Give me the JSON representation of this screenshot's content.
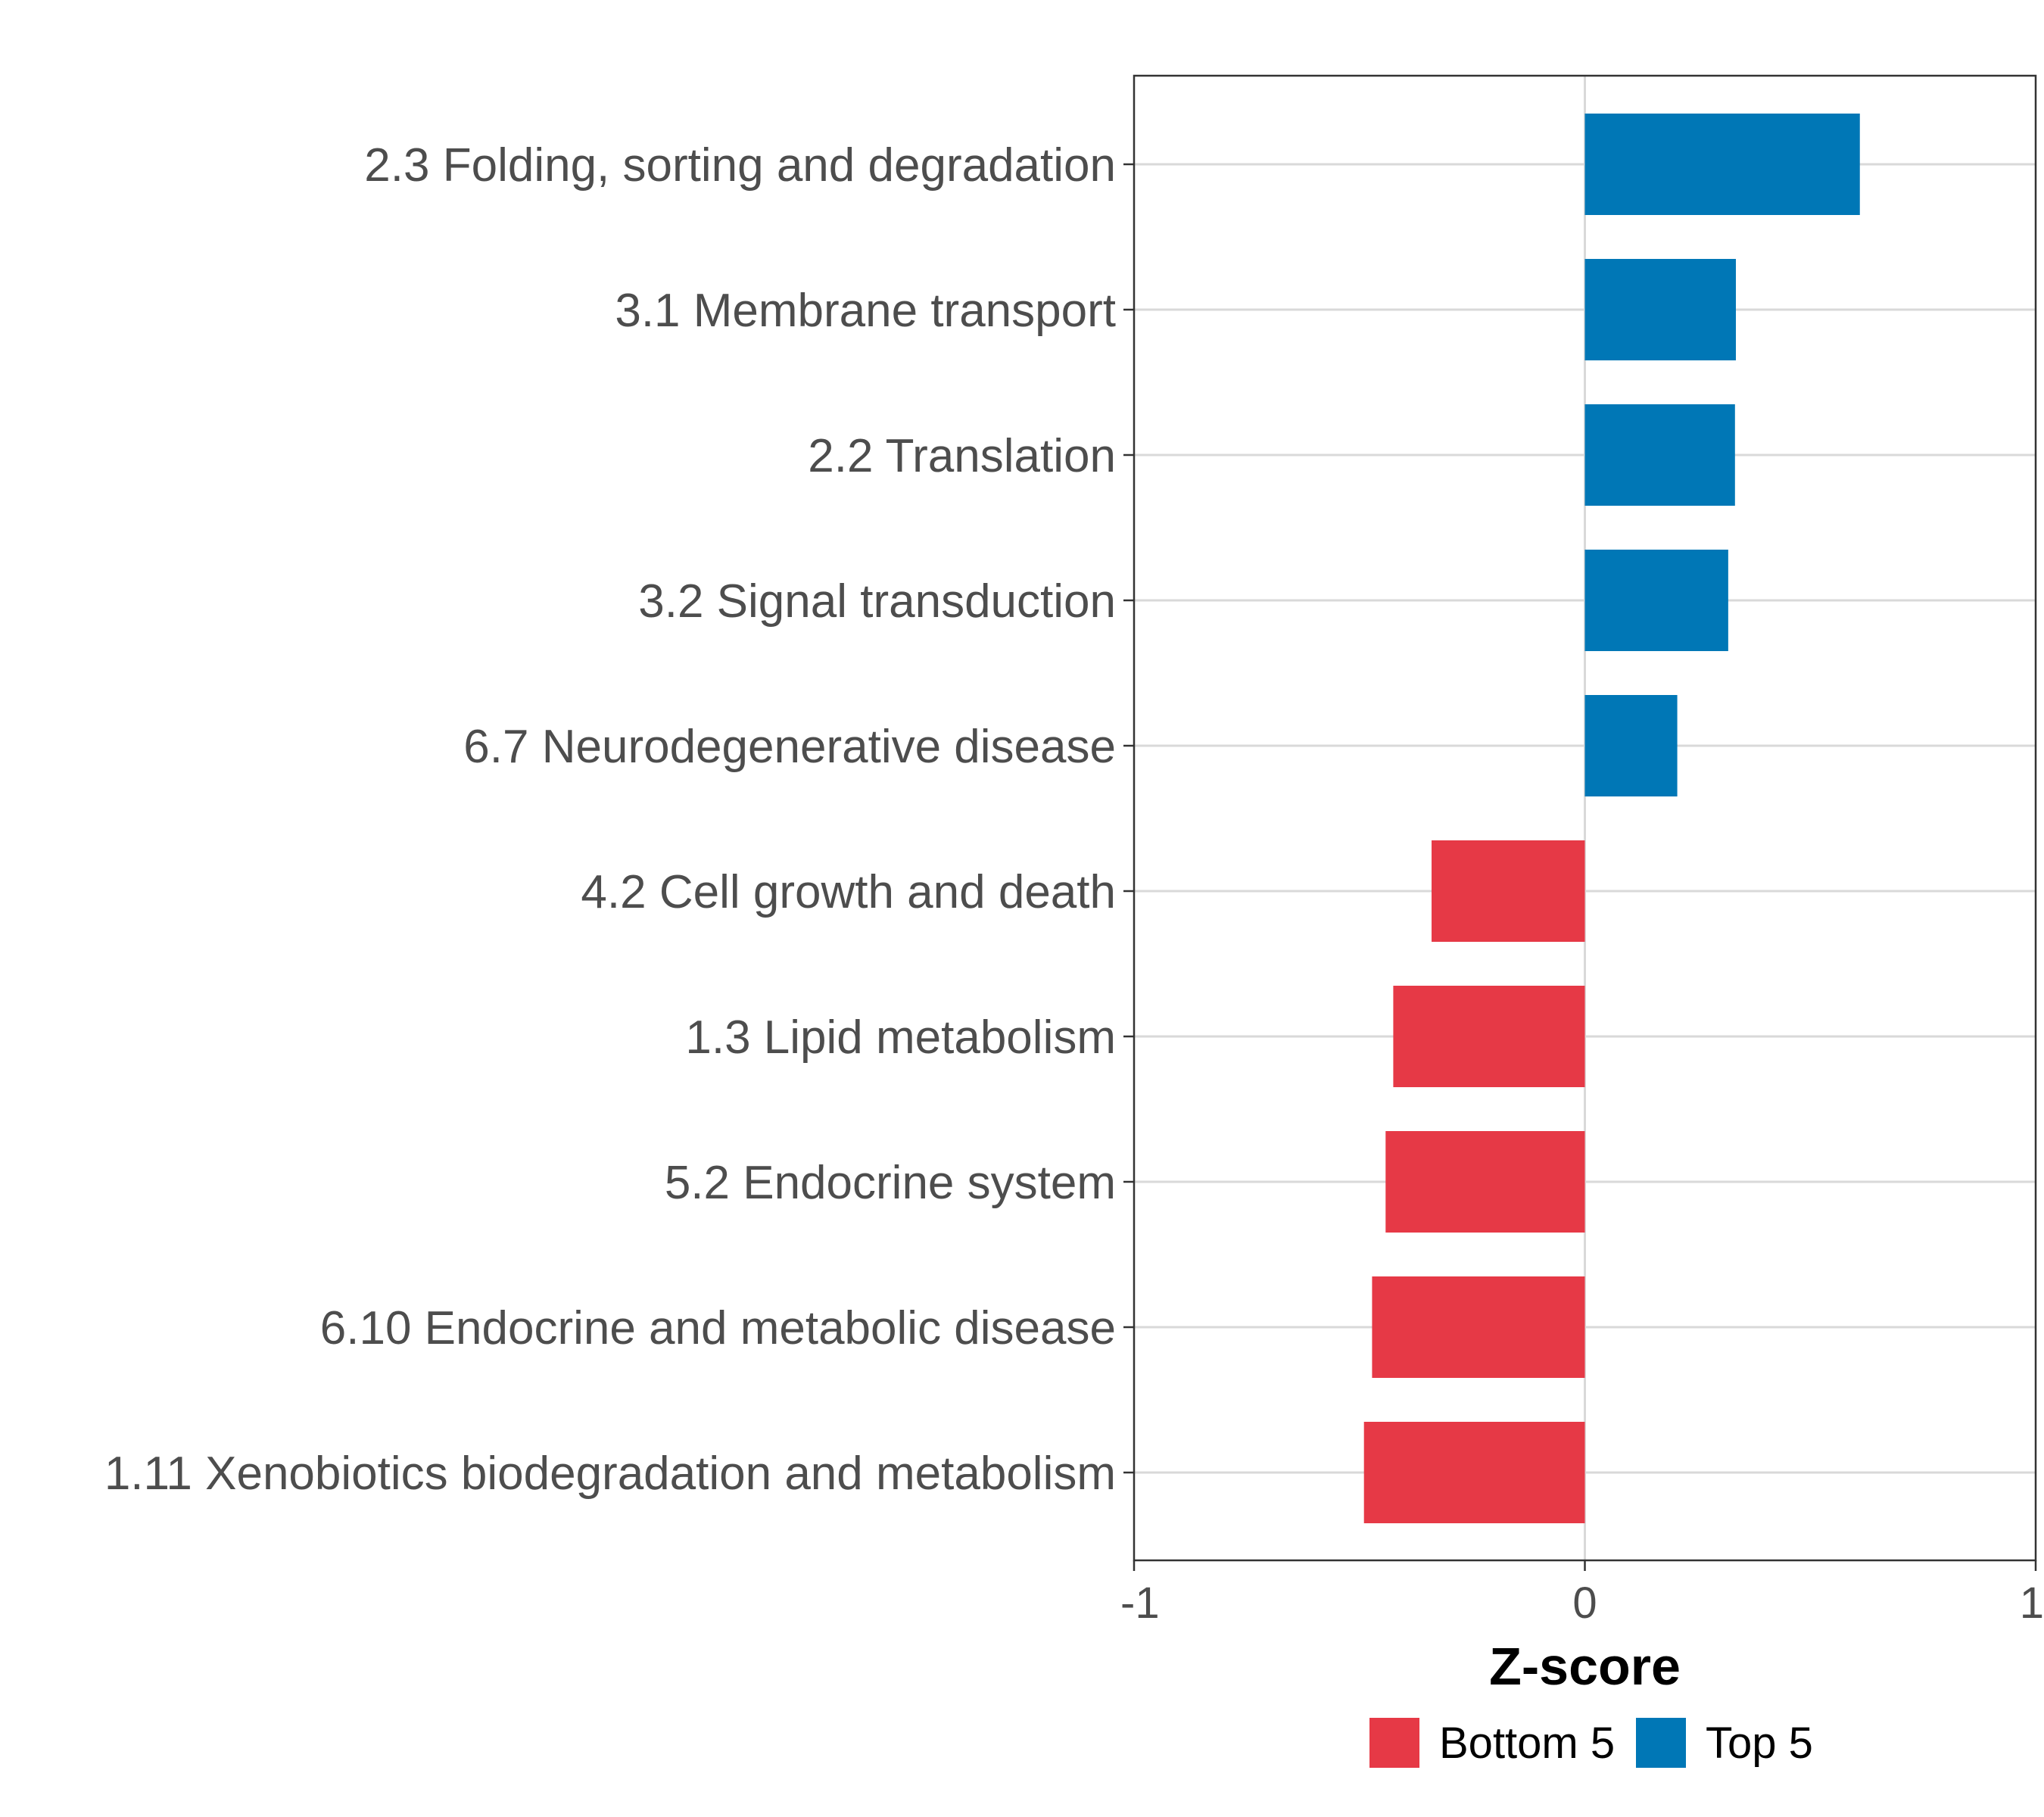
{
  "chart_data": {
    "type": "bar",
    "orientation": "horizontal",
    "title": "",
    "xlabel": "Z-score",
    "ylabel": "",
    "xlim": [
      -1,
      1
    ],
    "xticks": [
      -1,
      0,
      1
    ],
    "xtick_labels": [
      "-1",
      "0",
      "1"
    ],
    "grid": "horizontal major lines at each category",
    "legend_position": "bottom",
    "categories": [
      "2.3 Folding, sorting and degradation",
      "3.1 Membrane transport",
      "2.2 Translation",
      "3.2 Signal transduction",
      "6.7 Neurodegenerative disease",
      "4.2 Cell growth and death",
      "1.3 Lipid metabolism",
      "5.2 Endocrine system",
      "6.10 Endocrine and metabolic disease",
      "1.11 Xenobiotics biodegradation and metabolism"
    ],
    "values": [
      0.61,
      0.335,
      0.333,
      0.318,
      0.205,
      -0.34,
      -0.425,
      -0.442,
      -0.472,
      -0.49
    ],
    "groups": [
      "Top 5",
      "Top 5",
      "Top 5",
      "Top 5",
      "Top 5",
      "Bottom 5",
      "Bottom 5",
      "Bottom 5",
      "Bottom 5",
      "Bottom 5"
    ],
    "legend": [
      {
        "name": "Bottom 5",
        "color": "#e63946"
      },
      {
        "name": "Top 5",
        "color": "#0077b6"
      }
    ]
  }
}
